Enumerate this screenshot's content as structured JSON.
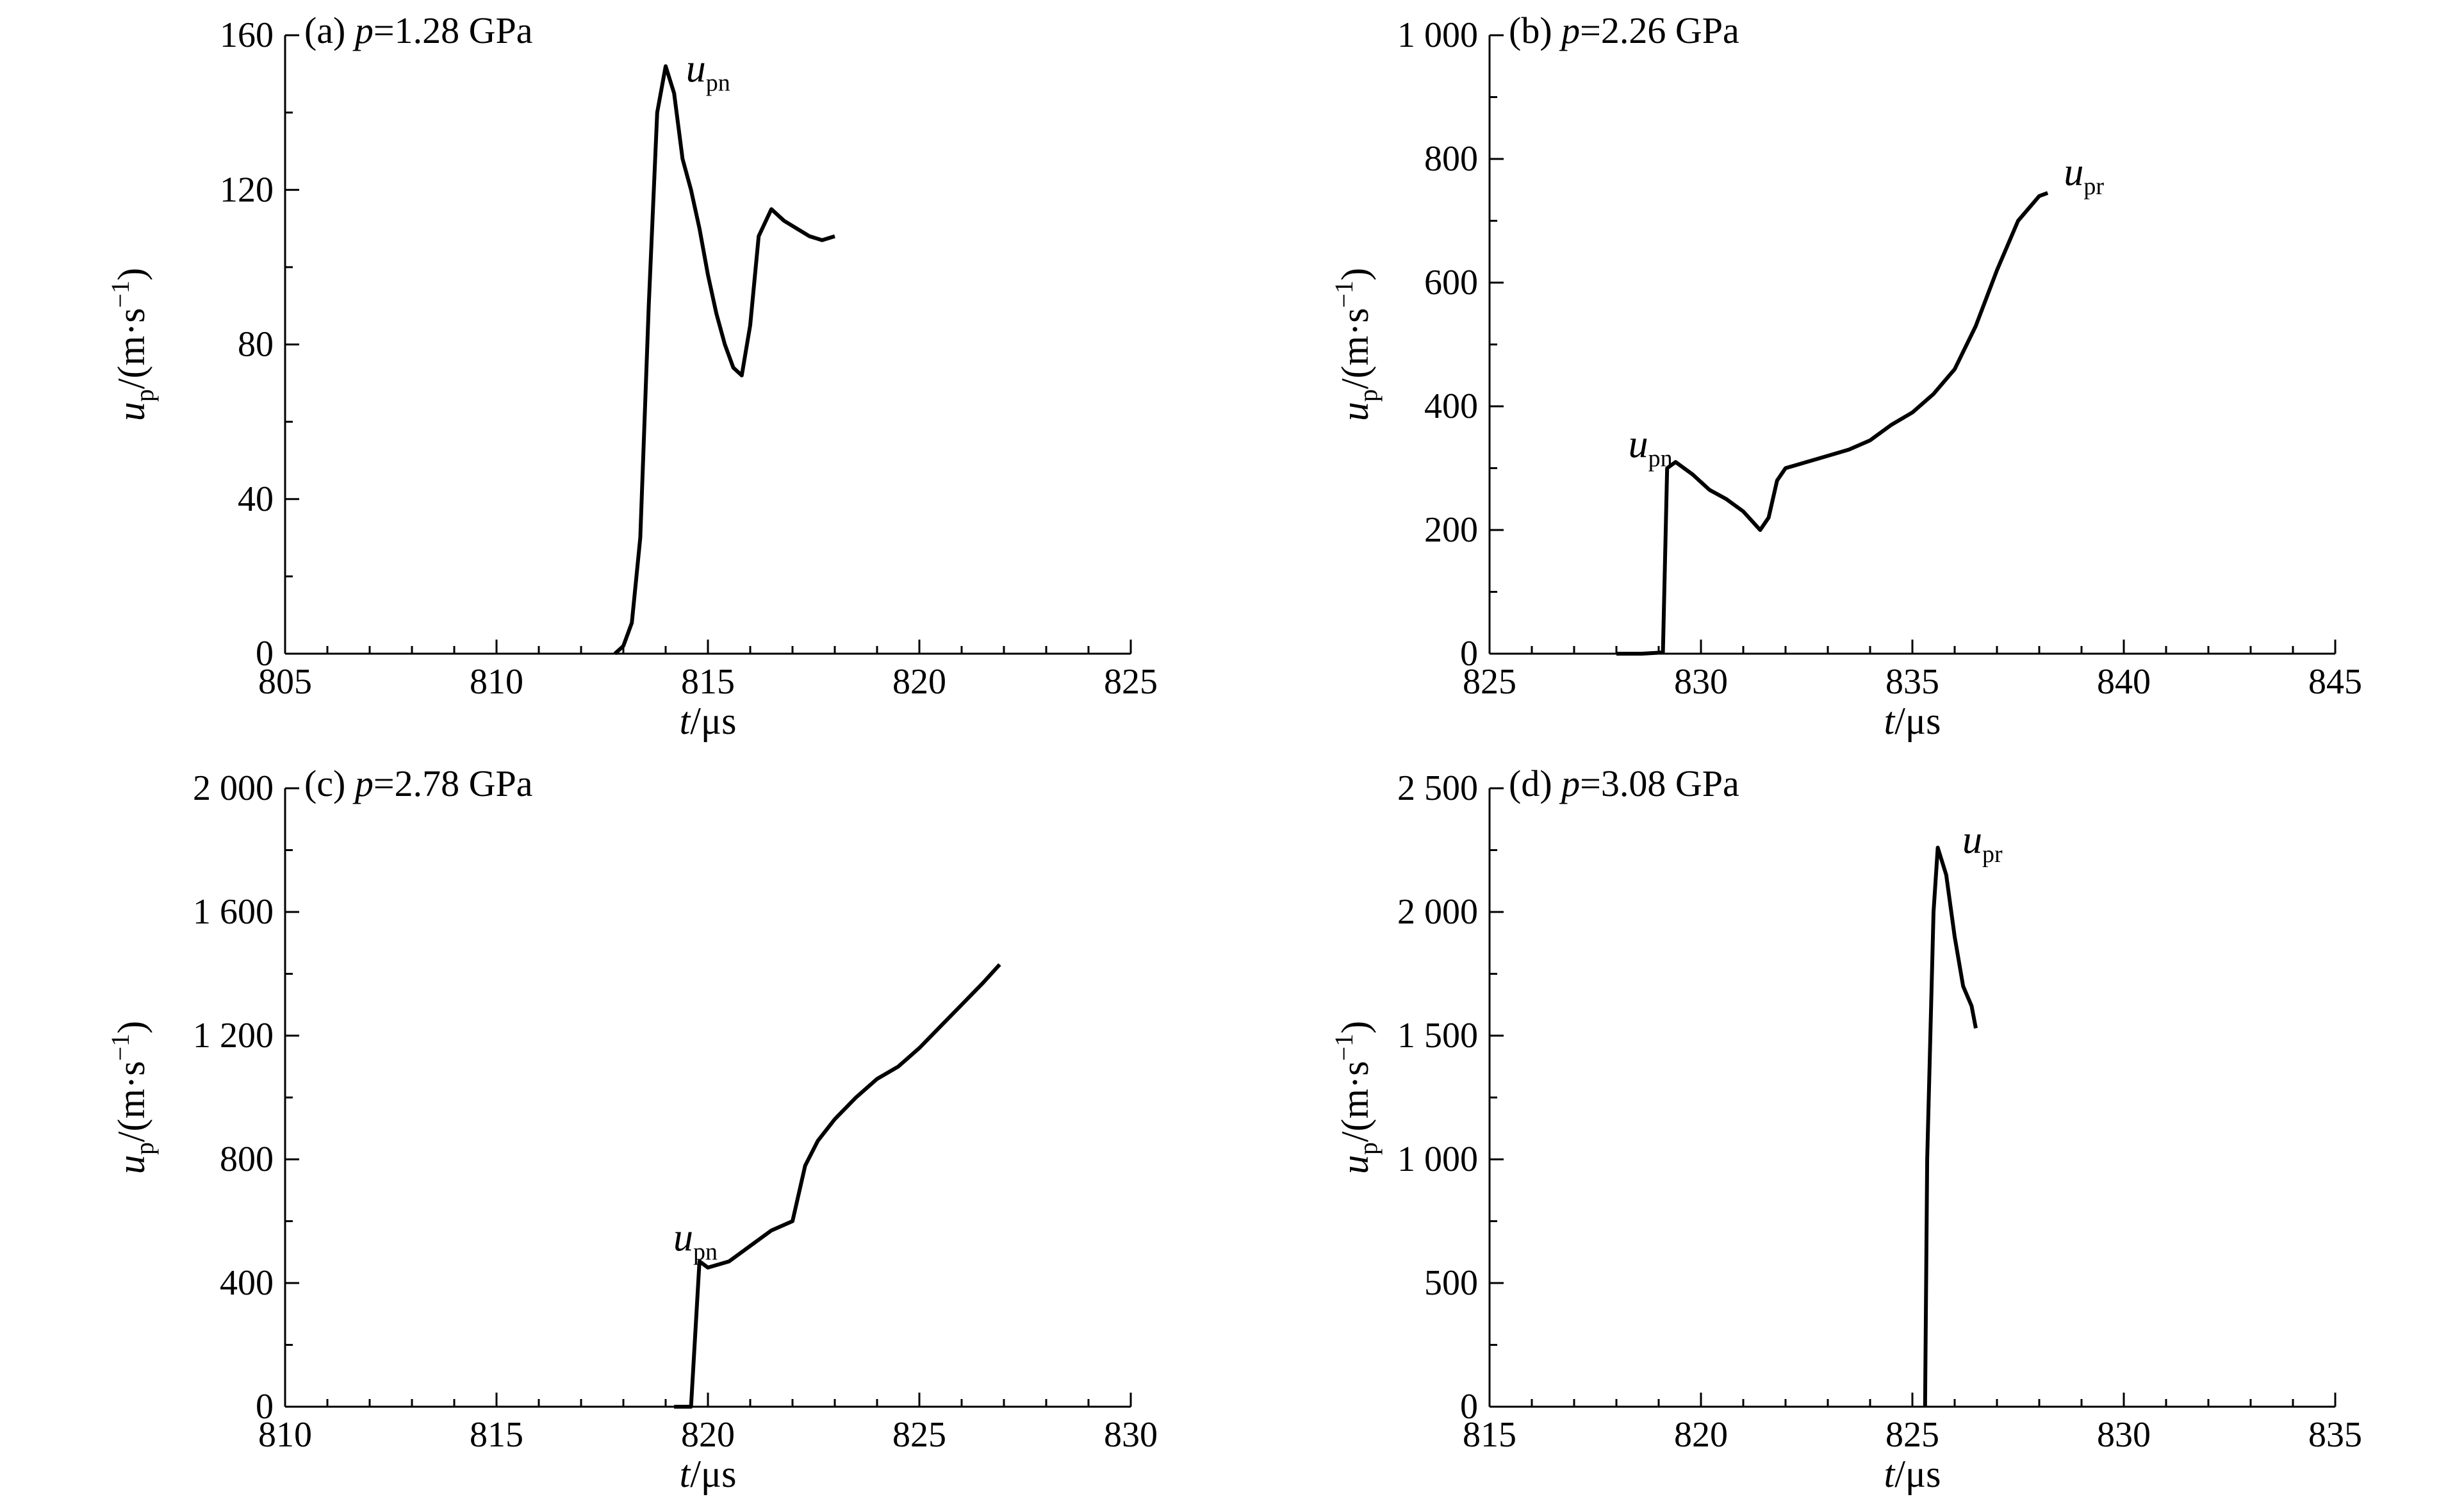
{
  "chart_data": [
    {
      "type": "line",
      "panel": "(a)",
      "title": "(a) p=1.28 GPa",
      "xlabel": "t/μs",
      "ylabel": "up/(m·s−1)",
      "xlim": [
        805,
        825
      ],
      "ylim": [
        0,
        160
      ],
      "xticks": [
        "805",
        "810",
        "815",
        "820",
        "825"
      ],
      "yticks": [
        "0",
        "40",
        "80",
        "120",
        "160"
      ],
      "annotations": [
        {
          "text": "upn",
          "x": 814.3,
          "y": 150
        }
      ],
      "series": [
        {
          "x": [
            812.8,
            813.0,
            813.2,
            813.4,
            813.6,
            813.8,
            814.0,
            814.2,
            814.4,
            814.6,
            814.8,
            815.0,
            815.2,
            815.4,
            815.6,
            815.8,
            816.0,
            816.2,
            816.5,
            816.8,
            817.1,
            817.4,
            817.7,
            818.0
          ],
          "y": [
            0,
            2,
            8,
            30,
            90,
            140,
            152,
            145,
            128,
            120,
            110,
            98,
            88,
            80,
            74,
            72,
            85,
            108,
            115,
            112,
            110,
            108,
            107,
            108
          ]
        }
      ]
    },
    {
      "type": "line",
      "panel": "(b)",
      "title": "(b) p=2.26 GPa",
      "xlabel": "t/μs",
      "ylabel": "up/(m·s−1)",
      "xlim": [
        825,
        845
      ],
      "ylim": [
        0,
        1000
      ],
      "xticks": [
        "825",
        "830",
        "835",
        "840",
        "845"
      ],
      "yticks": [
        "0",
        "200",
        "400",
        "600",
        "800",
        "1 000"
      ],
      "annotations": [
        {
          "text": "upn",
          "x": 828.1,
          "y": 330
        },
        {
          "text": "upr",
          "x": 838.4,
          "y": 770
        }
      ],
      "series": [
        {
          "x": [
            828.0,
            828.6,
            829.1,
            829.2,
            829.4,
            829.8,
            830.2,
            830.6,
            831.0,
            831.4,
            831.6,
            831.8,
            832.0,
            832.5,
            833.0,
            833.5,
            834.0,
            834.5,
            835.0,
            835.5,
            836.0,
            836.5,
            837.0,
            837.5,
            838.0,
            838.2
          ],
          "y": [
            0,
            0,
            2,
            300,
            310,
            290,
            265,
            250,
            230,
            200,
            220,
            280,
            300,
            310,
            320,
            330,
            345,
            370,
            390,
            420,
            460,
            530,
            620,
            700,
            740,
            745
          ]
        }
      ]
    },
    {
      "type": "line",
      "panel": "(c)",
      "title": "(c) p=2.78 GPa",
      "xlabel": "t/μs",
      "ylabel": "up/(m·s−1)",
      "xlim": [
        810,
        830
      ],
      "ylim": [
        0,
        2000
      ],
      "xticks": [
        "810",
        "815",
        "820",
        "825",
        "830"
      ],
      "yticks": [
        "0",
        "400",
        "800",
        "1 200",
        "1 600",
        "2 000"
      ],
      "annotations": [
        {
          "text": "upn",
          "x": 819.0,
          "y": 530
        }
      ],
      "series": [
        {
          "x": [
            819.2,
            819.6,
            819.8,
            820.0,
            820.5,
            821.0,
            821.5,
            822.0,
            822.3,
            822.6,
            823.0,
            823.5,
            824.0,
            824.5,
            825.0,
            825.5,
            826.0,
            826.5,
            826.9
          ],
          "y": [
            0,
            0,
            470,
            450,
            470,
            520,
            570,
            600,
            780,
            860,
            930,
            1000,
            1060,
            1100,
            1160,
            1230,
            1300,
            1370,
            1430
          ]
        }
      ]
    },
    {
      "type": "line",
      "panel": "(d)",
      "title": "(d) p=3.08 GPa",
      "xlabel": "t/μs",
      "ylabel": "up/(m·s−1)",
      "xlim": [
        815,
        835
      ],
      "ylim": [
        0,
        2500
      ],
      "xticks": [
        "815",
        "820",
        "825",
        "830",
        "835"
      ],
      "yticks": [
        "0",
        "500",
        "1 000",
        "1 500",
        "2 000",
        "2 500"
      ],
      "annotations": [
        {
          "text": "upr",
          "x": 826.0,
          "y": 2270
        }
      ],
      "series": [
        {
          "x": [
            825.3,
            825.35,
            825.5,
            825.6,
            825.8,
            826.0,
            826.2,
            826.4,
            826.5
          ],
          "y": [
            0,
            1000,
            2000,
            2260,
            2150,
            1900,
            1700,
            1620,
            1530
          ]
        }
      ]
    }
  ]
}
